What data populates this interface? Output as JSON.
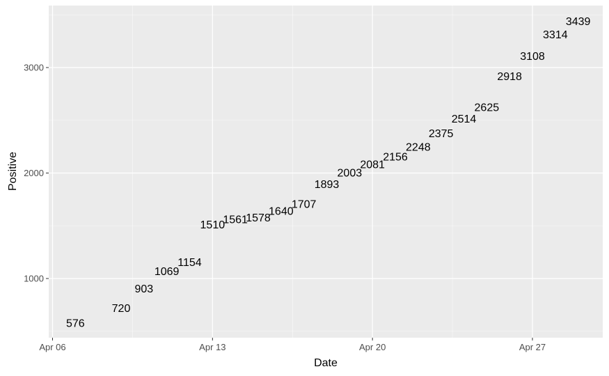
{
  "chart_data": {
    "type": "scatter",
    "xlabel": "Date",
    "ylabel": "Positive",
    "x_tick_labels": [
      "Apr 06",
      "Apr 13",
      "Apr 20",
      "Apr 27"
    ],
    "y_tick_labels": [
      "1000",
      "2000",
      "3000"
    ],
    "y_ticks": [
      1000,
      2000,
      3000
    ],
    "x_ticks": [
      "2020-04-06",
      "2020-04-13",
      "2020-04-20",
      "2020-04-27"
    ],
    "xlim": [
      "2020-04-06",
      "2020-04-30"
    ],
    "ylim": [
      420,
      3600
    ],
    "grid": true,
    "points": [
      {
        "date": "2020-04-07",
        "value": 576,
        "label": "576"
      },
      {
        "date": "2020-04-09",
        "value": 720,
        "label": "720"
      },
      {
        "date": "2020-04-10",
        "value": 903,
        "label": "903"
      },
      {
        "date": "2020-04-11",
        "value": 1069,
        "label": "1069"
      },
      {
        "date": "2020-04-12",
        "value": 1154,
        "label": "1154"
      },
      {
        "date": "2020-04-13",
        "value": 1510,
        "label": "1510"
      },
      {
        "date": "2020-04-14",
        "value": 1561,
        "label": "1561"
      },
      {
        "date": "2020-04-15",
        "value": 1578,
        "label": "1578"
      },
      {
        "date": "2020-04-16",
        "value": 1640,
        "label": "1640"
      },
      {
        "date": "2020-04-17",
        "value": 1707,
        "label": "1707"
      },
      {
        "date": "2020-04-18",
        "value": 1893,
        "label": "1893"
      },
      {
        "date": "2020-04-19",
        "value": 2003,
        "label": "2003"
      },
      {
        "date": "2020-04-20",
        "value": 2081,
        "label": "2081"
      },
      {
        "date": "2020-04-21",
        "value": 2156,
        "label": "2156"
      },
      {
        "date": "2020-04-22",
        "value": 2248,
        "label": "2248"
      },
      {
        "date": "2020-04-23",
        "value": 2375,
        "label": "2375"
      },
      {
        "date": "2020-04-24",
        "value": 2514,
        "label": "2514"
      },
      {
        "date": "2020-04-25",
        "value": 2625,
        "label": "2625"
      },
      {
        "date": "2020-04-26",
        "value": 2918,
        "label": "2918"
      },
      {
        "date": "2020-04-27",
        "value": 3108,
        "label": "3108"
      },
      {
        "date": "2020-04-28",
        "value": 3314,
        "label": "3314"
      },
      {
        "date": "2020-04-29",
        "value": 3439,
        "label": "3439"
      }
    ],
    "colors": {
      "panel_background": "#ebebeb",
      "grid_major": "#ffffff",
      "label_text": "#000000",
      "tick_text": "#4d4d4d"
    }
  }
}
